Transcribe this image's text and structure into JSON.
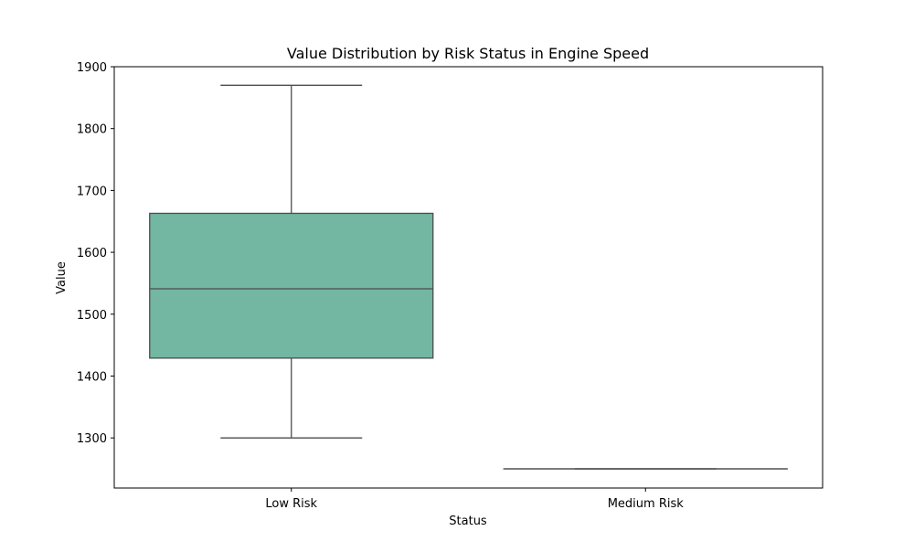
{
  "chart_data": {
    "type": "box",
    "title": "Value Distribution by Risk Status in Engine Speed",
    "xlabel": "Status",
    "ylabel": "Value",
    "categories": [
      "Low Risk",
      "Medium Risk"
    ],
    "ylim": [
      1219,
      1900
    ],
    "yticks": [
      1300,
      1400,
      1500,
      1600,
      1700,
      1800,
      1900
    ],
    "grid": false,
    "boxes": [
      {
        "category": "Low Risk",
        "whisker_low": 1300,
        "q1": 1429,
        "median": 1541,
        "q3": 1663,
        "whisker_high": 1870
      },
      {
        "category": "Medium Risk",
        "whisker_low": 1250,
        "q1": 1250,
        "median": 1250,
        "q3": 1250,
        "whisker_high": 1250
      }
    ],
    "colors": {
      "box_fill": "#73b6a1",
      "line": "#4d4d4d",
      "axes": "#000000"
    }
  }
}
